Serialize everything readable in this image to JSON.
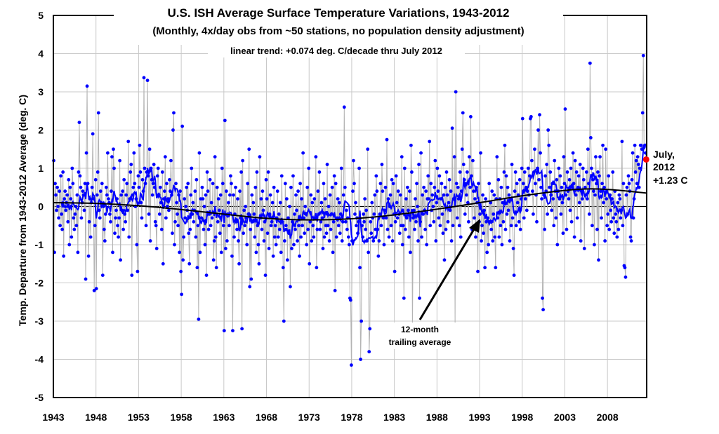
{
  "chart_data": {
    "type": "scatter",
    "title": "U.S. ISH Average Surface Temperature Variations, 1943-2012",
    "subtitle": "(Monthly, 4x/day obs from ~50 stations, no population density adjustment)",
    "trend_note": "linear trend: +0.074 deg. C/decade thru July 2012",
    "ylabel": "Temp. Departure from 1943-2012 Average (deg. C)",
    "xlabel": "",
    "xlim": [
      1943,
      2012.6
    ],
    "ylim": [
      -5,
      5
    ],
    "x_ticks": [
      "1943",
      "1948",
      "1953",
      "1958",
      "1963",
      "1968",
      "1973",
      "1978",
      "1983",
      "1988",
      "1993",
      "1998",
      "2003",
      "2008"
    ],
    "y_ticks": [
      "5",
      "4",
      "3",
      "2",
      "1",
      "0",
      "-1",
      "-2",
      "-3",
      "-4",
      "-5"
    ],
    "grid": true,
    "start": "1943-01",
    "end": "2012-07",
    "colors": {
      "points": "#0000ff",
      "connector": "#b4b4b4",
      "running_mean": "#0000ff",
      "smooth": "#000000",
      "highlight": "#ff0000"
    },
    "series": [
      {
        "name": "monthly",
        "values_by_year": [
          [
            1.2,
            -1.2,
            0.6,
            0.3,
            -0.1,
            0.5,
            0.0,
            -0.3,
            0.4,
            -0.5,
            0.8,
            -0.2
          ],
          [
            -0.6,
            0.9,
            -1.3,
            0.2,
            0.4,
            -0.1,
            0.1,
            0.3,
            -0.4,
            0.7,
            -1.0,
            0.5
          ],
          [
            0.2,
            -0.8,
            1.0,
            0.6,
            -0.3,
            -0.6,
            -0.2,
            0.0,
            -0.5,
            0.3,
            -1.2,
            0.9
          ],
          [
            2.2,
            0.8,
            0.5,
            -0.3,
            0.1,
            0.4,
            0.3,
            -0.1,
            0.6,
            -1.9,
            1.4,
            3.15
          ],
          [
            0.6,
            -1.3,
            -0.4,
            0.2,
            -0.8,
            0.1,
            0.5,
            1.9,
            0.2,
            -2.2,
            -0.5,
            0.7
          ],
          [
            -2.15,
            0.3,
            0.9,
            2.45,
            -0.1,
            -0.3,
            0.4,
            0.1,
            0.6,
            -1.8,
            0.0,
            -0.6
          ],
          [
            -0.9,
            -0.2,
            0.5,
            0.3,
            1.4,
            0.2,
            0.1,
            -0.2,
            -0.4,
            0.4,
            1.3,
            -1.2
          ],
          [
            1.5,
            1.0,
            -0.7,
            -0.3,
            -0.1,
            0.2,
            -0.5,
            -0.8,
            -0.3,
            1.2,
            -1.4,
            0.3
          ],
          [
            -0.1,
            0.4,
            -0.6,
            0.7,
            -0.2,
            -0.4,
            0.3,
            0.6,
            -0.1,
            1.7,
            -0.8,
            0.2
          ],
          [
            0.9,
            1.1,
            -1.8,
            0.3,
            0.5,
            1.4,
            0.6,
            0.0,
            0.2,
            -1.0,
            -1.7,
            0.8
          ],
          [
            0.5,
            1.6,
            0.9,
            0.1,
            -0.3,
            0.7,
            0.4,
            3.37,
            1.0,
            0.6,
            -0.5,
            0.9
          ],
          [
            3.3,
            0.8,
            -0.2,
            1.5,
            -0.9,
            1.0,
            0.7,
            0.3,
            0.6,
            1.1,
            0.5,
            -0.4
          ],
          [
            -0.5,
            -1.1,
            0.8,
            1.0,
            0.3,
            -0.2,
            0.5,
            0.1,
            -0.6,
            0.9,
            -1.5,
            0.2
          ],
          [
            0.4,
            1.3,
            -0.3,
            0.6,
            0.0,
            0.2,
            -0.1,
            0.7,
            0.4,
            1.2,
            0.3,
            -0.7
          ],
          [
            2.0,
            2.45,
            -1.0,
            -0.4,
            0.6,
            0.1,
            -0.2,
            -0.5,
            0.3,
            -1.2,
            0.4,
            -1.7
          ],
          [
            -2.3,
            2.1,
            -1.4,
            -0.8,
            0.2,
            -0.3,
            0.0,
            0.5,
            -0.1,
            0.6,
            -0.7,
            -1.5
          ],
          [
            -0.6,
            0.3,
            1.0,
            -0.2,
            0.1,
            -0.4,
            -0.1,
            0.4,
            -0.8,
            0.7,
            -1.6,
            -0.5
          ],
          [
            -2.95,
            1.4,
            -1.2,
            0.2,
            -0.3,
            0.5,
            0.2,
            -0.6,
            0.0,
            -1.0,
            0.3,
            -1.8
          ],
          [
            0.9,
            0.4,
            -0.6,
            -0.2,
            0.7,
            -0.5,
            0.1,
            -0.3,
            0.6,
            -1.4,
            -0.9,
            1.3
          ],
          [
            -0.8,
            -1.6,
            0.5,
            -0.4,
            0.2,
            -0.1,
            -0.7,
            0.3,
            -1.2,
            1.0,
            0.6,
            -0.5
          ],
          [
            -3.25,
            2.25,
            -1.1,
            0.4,
            -0.9,
            -0.2,
            0.1,
            -0.5,
            0.3,
            0.8,
            0.6,
            -1.3
          ],
          [
            -3.25,
            0.3,
            -0.8,
            -0.2,
            0.5,
            -0.4,
            -0.6,
            0.2,
            -0.9,
            -1.5,
            0.4,
            -0.3
          ],
          [
            0.9,
            -3.2,
            1.2,
            -0.7,
            -0.1,
            -0.5,
            0.0,
            -0.3,
            -1.0,
            0.6,
            -0.2,
            1.5
          ],
          [
            -2.1,
            -0.6,
            -1.9,
            0.3,
            -0.4,
            0.1,
            -0.2,
            -0.8,
            0.5,
            -1.2,
            0.9,
            -0.5
          ],
          [
            -1.0,
            -1.5,
            1.3,
            -0.3,
            0.2,
            -0.6,
            0.4,
            -0.1,
            -0.9,
            -0.4,
            -1.8,
            0.7
          ],
          [
            0.2,
            -0.7,
            0.9,
            -1.1,
            -0.2,
            0.3,
            -0.5,
            -0.4,
            0.1,
            -1.3,
            0.5,
            -0.8
          ],
          [
            -0.5,
            -1.0,
            -0.3,
            0.4,
            -0.8,
            -0.2,
            -0.6,
            0.1,
            -1.2,
            0.8,
            -0.4,
            -1.6
          ],
          [
            -3.0,
            -0.9,
            0.6,
            -0.5,
            0.2,
            -1.4,
            -0.3,
            -0.7,
            0.0,
            -2.1,
            0.5,
            -1.1
          ],
          [
            -0.4,
            0.8,
            -1.0,
            -0.2,
            -0.6,
            0.3,
            -0.1,
            -0.9,
            0.4,
            -0.5,
            -1.3,
            0.6
          ],
          [
            -0.8,
            0.2,
            -0.5,
            1.4,
            -0.3,
            -0.7,
            0.0,
            -0.2,
            -1.0,
            0.5,
            -0.6,
            1.0
          ],
          [
            -1.5,
            -0.4,
            0.3,
            -0.9,
            0.1,
            -0.5,
            -0.8,
            0.2,
            -0.3,
            1.3,
            -1.6,
            -0.6
          ],
          [
            0.4,
            -0.2,
            0.9,
            -0.6,
            -0.4,
            0.1,
            -0.3,
            -1.1,
            0.6,
            -0.8,
            0.2,
            -0.5
          ],
          [
            -0.7,
            1.1,
            -0.5,
            0.0,
            -0.9,
            0.3,
            -0.6,
            -0.2,
            0.5,
            -1.2,
            -0.4,
            0.8
          ],
          [
            -2.2,
            0.6,
            -0.8,
            -0.3,
            0.2,
            -0.5,
            0.1,
            -0.7,
            -0.2,
            1.0,
            -0.9,
            -0.4
          ],
          [
            0.3,
            2.6,
            0.5,
            -0.4,
            -0.1,
            -0.6,
            -0.3,
            -0.8,
            -1.0,
            -2.4,
            -2.45,
            -4.15
          ],
          [
            -0.9,
            0.4,
            1.2,
            0.6,
            -0.2,
            0.1,
            -0.5,
            -0.3,
            -0.7,
            -0.4,
            1.0,
            -1.6
          ],
          [
            -4.0,
            -3.0,
            -0.5,
            -0.8,
            -0.2,
            -0.4,
            0.2,
            -0.6,
            -0.1,
            -0.9,
            1.5,
            -1.2
          ],
          [
            -3.8,
            -3.2,
            -0.4,
            -0.7,
            0.1,
            -0.3,
            -0.9,
            -0.2,
            0.3,
            -0.6,
            0.8,
            0.4
          ],
          [
            -0.6,
            -1.3,
            -0.9,
            -0.2,
            0.6,
            -0.5,
            1.1,
            0.4,
            -0.3,
            -1.0,
            -0.1,
            0.5
          ],
          [
            -0.3,
            1.75,
            -0.6,
            0.2,
            -0.8,
            0.0,
            0.3,
            -0.5,
            0.7,
            -0.9,
            0.6,
            -0.2
          ],
          [
            -1.7,
            -0.4,
            0.8,
            0.1,
            -0.3,
            0.4,
            -0.2,
            -0.7,
            0.3,
            -0.5,
            1.3,
            -1.0
          ],
          [
            -0.5,
            -2.4,
            1.0,
            -0.6,
            0.2,
            -0.3,
            0.5,
            -0.1,
            -0.8,
            0.4,
            -1.2,
            1.6
          ],
          [
            0.9,
            -3.3,
            -0.3,
            -0.1,
            -0.6,
            0.2,
            -0.4,
            0.6,
            0.0,
            -0.9,
            1.1,
            -2.4
          ],
          [
            -0.4,
            1.4,
            -0.8,
            0.3,
            -0.2,
            0.5,
            -0.1,
            -0.6,
            0.4,
            -1.0,
            0.2,
            0.8
          ],
          [
            0.2,
            1.7,
            -0.5,
            0.6,
            -0.1,
            0.3,
            0.0,
            -0.4,
            0.5,
            1.2,
            -0.9,
            0.1
          ],
          [
            1.0,
            0.4,
            -0.3,
            0.8,
            -0.5,
            0.2,
            0.6,
            -0.2,
            -0.7,
            0.3,
            -1.4,
            0.5
          ],
          [
            -0.6,
            0.9,
            0.3,
            -0.4,
            0.1,
            0.7,
            -0.1,
            0.4,
            -0.9,
            2.05,
            -0.5,
            0.2
          ],
          [
            1.3,
            -3.15,
            3.0,
            0.6,
            -0.3,
            0.5,
            0.2,
            -0.5,
            0.9,
            -0.8,
            0.4,
            1.5
          ],
          [
            2.45,
            1.1,
            0.7,
            -0.2,
            0.6,
            0.3,
            0.9,
            0.1,
            -0.4,
            1.3,
            0.5,
            2.35
          ],
          [
            0.8,
            -0.6,
            1.2,
            0.4,
            -0.3,
            0.2,
            -0.8,
            0.5,
            0.1,
            -1.7,
            0.6,
            -0.4
          ],
          [
            -0.2,
            1.4,
            -0.9,
            -0.5,
            0.3,
            -0.7,
            -0.1,
            -1.6,
            0.2,
            -0.4,
            -1.2,
            -0.3
          ],
          [
            -1.0,
            0.6,
            -0.4,
            0.1,
            -0.6,
            0.4,
            -0.9,
            -0.2,
            0.3,
            -0.8,
            -1.6,
            0.2
          ],
          [
            1.3,
            -0.3,
            0.7,
            -0.8,
            0.2,
            -0.5,
            0.5,
            -1.0,
            0.1,
            -0.4,
            0.9,
            1.6
          ],
          [
            -0.6,
            0.8,
            -0.2,
            0.5,
            -0.1,
            0.3,
            -0.9,
            0.2,
            -0.5,
            1.1,
            -0.3,
            -1.1
          ],
          [
            -1.8,
            0.4,
            0.9,
            -0.5,
            0.6,
            0.1,
            0.3,
            -0.4,
            0.7,
            -0.6,
            0.2,
            1.0
          ],
          [
            2.3,
            0.6,
            -0.3,
            0.9,
            0.2,
            0.5,
            -0.1,
            0.4,
            1.0,
            0.3,
            0.8,
            2.3
          ],
          [
            2.35,
            1.2,
            0.4,
            -0.2,
            0.9,
            1.5,
            0.6,
            0.3,
            -0.4,
            1.0,
            2.0,
            0.7
          ],
          [
            2.4,
            1.4,
            0.5,
            0.2,
            -2.4,
            -2.7,
            0.3,
            -0.6,
            0.8,
            0.4,
            1.1,
            -0.2
          ],
          [
            2.0,
            1.6,
            0.5,
            0.9,
            0.3,
            -0.1,
            0.6,
            0.2,
            -0.5,
            1.2,
            0.4,
            -0.3
          ],
          [
            0.7,
            -1.0,
            0.4,
            1.0,
            0.2,
            0.8,
            -0.2,
            0.5,
            0.1,
            -0.7,
            1.3,
            0.6
          ],
          [
            2.55,
            0.3,
            -0.6,
            0.9,
            0.4,
            0.2,
            0.7,
            -0.1,
            1.0,
            -0.4,
            0.5,
            1.4
          ],
          [
            0.6,
            -0.8,
            1.2,
            0.3,
            0.9,
            -0.3,
            0.5,
            0.8,
            0.1,
            1.1,
            -0.9,
            0.4
          ],
          [
            0.2,
            1.0,
            0.7,
            -1.1,
            0.5,
            0.3,
            0.9,
            0.2,
            1.5,
            0.6,
            -0.2,
            3.75
          ],
          [
            1.8,
            1.0,
            -0.5,
            0.7,
            0.4,
            -1.0,
            0.3,
            1.3,
            0.6,
            -0.6,
            0.9,
            -1.4
          ],
          [
            0.8,
            1.3,
            0.4,
            -0.3,
            0.6,
            1.6,
            0.1,
            0.5,
            -0.9,
            1.5,
            0.2,
            -0.5
          ],
          [
            -0.2,
            0.8,
            -0.6,
            0.3,
            -0.1,
            -0.4,
            0.2,
            0.9,
            -0.3,
            -0.7,
            0.4,
            -0.2
          ],
          [
            -0.4,
            -0.8,
            0.1,
            -0.6,
            0.3,
            0.2,
            -0.3,
            -0.1,
            1.7,
            -0.5,
            0.6,
            -1.55
          ],
          [
            -1.6,
            -1.85,
            0.3,
            0.5,
            -0.2,
            0.8,
            0.6,
            0.4,
            -0.8,
            -0.9,
            0.7,
            1.4
          ],
          [
            -0.3,
            0.2,
            1.6,
            0.9,
            1.2,
            0.6,
            1.3,
            1.1,
            0.5,
            1.0,
            1.6,
            1.6
          ],
          [
            1.5,
            2.45,
            3.95,
            1.55,
            1.6,
            1.4,
            1.23
          ]
        ]
      },
      {
        "name": "12-month trailing average",
        "derived_from": "monthly"
      },
      {
        "name": "smooth",
        "points": [
          [
            1943,
            0.1
          ],
          [
            1948,
            0.08
          ],
          [
            1953,
            0.02
          ],
          [
            1958,
            -0.08
          ],
          [
            1963,
            -0.2
          ],
          [
            1968,
            -0.31
          ],
          [
            1973,
            -0.35
          ],
          [
            1978,
            -0.32
          ],
          [
            1983,
            -0.22
          ],
          [
            1988,
            -0.07
          ],
          [
            1993,
            0.1
          ],
          [
            1998,
            0.28
          ],
          [
            2003,
            0.42
          ],
          [
            2006,
            0.46
          ],
          [
            2009,
            0.43
          ],
          [
            2012.6,
            0.35
          ]
        ]
      }
    ],
    "annotations": {
      "running_mean_label": [
        "12-month",
        "trailing average"
      ],
      "last_value_label": [
        "July,",
        "2012",
        "+1.23 C"
      ],
      "last_value": 1.23
    }
  }
}
